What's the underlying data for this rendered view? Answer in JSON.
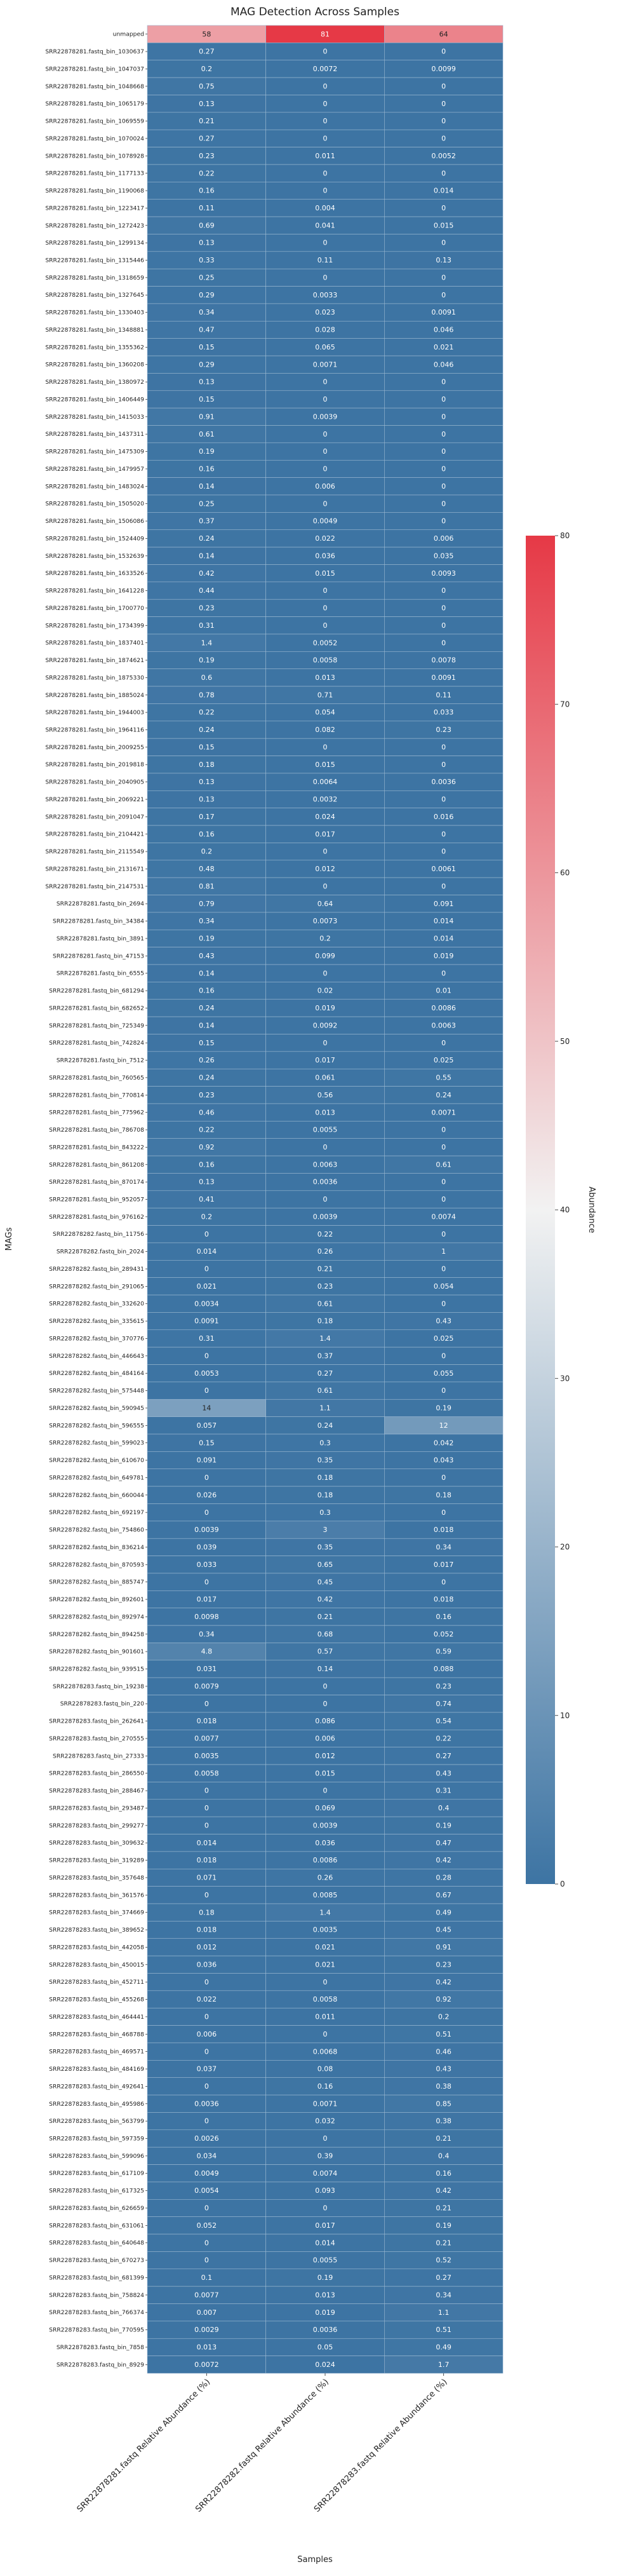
{
  "chart_data": {
    "type": "heatmap",
    "title": "MAG Detection Across Samples",
    "xlabel": "Samples",
    "ylabel": "MAGs",
    "columns": [
      "SRR22878281.fastq Relative Abundance (%)",
      "SRR22878282.fastq Relative Abundance (%)",
      "SRR22878283.fastq Relative Abundance (%)"
    ],
    "rows": [
      "unmapped",
      "SRR22878281.fastq_bin_1030637",
      "SRR22878281.fastq_bin_1047037",
      "SRR22878281.fastq_bin_1048668",
      "SRR22878281.fastq_bin_1065179",
      "SRR22878281.fastq_bin_1069559",
      "SRR22878281.fastq_bin_1070024",
      "SRR22878281.fastq_bin_1078928",
      "SRR22878281.fastq_bin_1177133",
      "SRR22878281.fastq_bin_1190068",
      "SRR22878281.fastq_bin_1223417",
      "SRR22878281.fastq_bin_1272423",
      "SRR22878281.fastq_bin_1299134",
      "SRR22878281.fastq_bin_1315446",
      "SRR22878281.fastq_bin_1318659",
      "SRR22878281.fastq_bin_1327645",
      "SRR22878281.fastq_bin_1330403",
      "SRR22878281.fastq_bin_1348881",
      "SRR22878281.fastq_bin_1355362",
      "SRR22878281.fastq_bin_1360208",
      "SRR22878281.fastq_bin_1380972",
      "SRR22878281.fastq_bin_1406449",
      "SRR22878281.fastq_bin_1415033",
      "SRR22878281.fastq_bin_1437311",
      "SRR22878281.fastq_bin_1475309",
      "SRR22878281.fastq_bin_1479957",
      "SRR22878281.fastq_bin_1483024",
      "SRR22878281.fastq_bin_1505020",
      "SRR22878281.fastq_bin_1506086",
      "SRR22878281.fastq_bin_1524409",
      "SRR22878281.fastq_bin_1532639",
      "SRR22878281.fastq_bin_1633526",
      "SRR22878281.fastq_bin_1641228",
      "SRR22878281.fastq_bin_1700770",
      "SRR22878281.fastq_bin_1734399",
      "SRR22878281.fastq_bin_1837401",
      "SRR22878281.fastq_bin_1874621",
      "SRR22878281.fastq_bin_1875330",
      "SRR22878281.fastq_bin_1885024",
      "SRR22878281.fastq_bin_1944003",
      "SRR22878281.fastq_bin_1964116",
      "SRR22878281.fastq_bin_2009255",
      "SRR22878281.fastq_bin_2019818",
      "SRR22878281.fastq_bin_2040905",
      "SRR22878281.fastq_bin_2069221",
      "SRR22878281.fastq_bin_2091047",
      "SRR22878281.fastq_bin_2104421",
      "SRR22878281.fastq_bin_2115549",
      "SRR22878281.fastq_bin_2131671",
      "SRR22878281.fastq_bin_2147531",
      "SRR22878281.fastq_bin_2694",
      "SRR22878281.fastq_bin_34384",
      "SRR22878281.fastq_bin_3891",
      "SRR22878281.fastq_bin_47153",
      "SRR22878281.fastq_bin_6555",
      "SRR22878281.fastq_bin_681294",
      "SRR22878281.fastq_bin_682652",
      "SRR22878281.fastq_bin_725349",
      "SRR22878281.fastq_bin_742824",
      "SRR22878281.fastq_bin_7512",
      "SRR22878281.fastq_bin_760565",
      "SRR22878281.fastq_bin_770814",
      "SRR22878281.fastq_bin_775962",
      "SRR22878281.fastq_bin_786708",
      "SRR22878281.fastq_bin_843222",
      "SRR22878281.fastq_bin_861208",
      "SRR22878281.fastq_bin_870174",
      "SRR22878281.fastq_bin_952057",
      "SRR22878281.fastq_bin_976162",
      "SRR22878282.fastq_bin_11756",
      "SRR22878282.fastq_bin_2024",
      "SRR22878282.fastq_bin_289431",
      "SRR22878282.fastq_bin_291065",
      "SRR22878282.fastq_bin_332620",
      "SRR22878282.fastq_bin_335615",
      "SRR22878282.fastq_bin_370776",
      "SRR22878282.fastq_bin_446643",
      "SRR22878282.fastq_bin_484164",
      "SRR22878282.fastq_bin_575448",
      "SRR22878282.fastq_bin_590945",
      "SRR22878282.fastq_bin_596555",
      "SRR22878282.fastq_bin_599023",
      "SRR22878282.fastq_bin_610670",
      "SRR22878282.fastq_bin_649781",
      "SRR22878282.fastq_bin_660044",
      "SRR22878282.fastq_bin_692197",
      "SRR22878282.fastq_bin_754860",
      "SRR22878282.fastq_bin_836214",
      "SRR22878282.fastq_bin_870593",
      "SRR22878282.fastq_bin_885747",
      "SRR22878282.fastq_bin_892601",
      "SRR22878282.fastq_bin_892974",
      "SRR22878282.fastq_bin_894258",
      "SRR22878282.fastq_bin_901601",
      "SRR22878282.fastq_bin_939515",
      "SRR22878283.fastq_bin_19238",
      "SRR22878283.fastq_bin_220",
      "SRR22878283.fastq_bin_262641",
      "SRR22878283.fastq_bin_270555",
      "SRR22878283.fastq_bin_27333",
      "SRR22878283.fastq_bin_286550",
      "SRR22878283.fastq_bin_288467",
      "SRR22878283.fastq_bin_293487",
      "SRR22878283.fastq_bin_299277",
      "SRR22878283.fastq_bin_309632",
      "SRR22878283.fastq_bin_319289",
      "SRR22878283.fastq_bin_357648",
      "SRR22878283.fastq_bin_361576",
      "SRR22878283.fastq_bin_374669",
      "SRR22878283.fastq_bin_389652",
      "SRR22878283.fastq_bin_442058",
      "SRR22878283.fastq_bin_450015",
      "SRR22878283.fastq_bin_452711",
      "SRR22878283.fastq_bin_455268",
      "SRR22878283.fastq_bin_464441",
      "SRR22878283.fastq_bin_468788",
      "SRR22878283.fastq_bin_469571",
      "SRR22878283.fastq_bin_484169",
      "SRR22878283.fastq_bin_492641",
      "SRR22878283.fastq_bin_495986",
      "SRR22878283.fastq_bin_563799",
      "SRR22878283.fastq_bin_597359",
      "SRR22878283.fastq_bin_599096",
      "SRR22878283.fastq_bin_617109",
      "SRR22878283.fastq_bin_617325",
      "SRR22878283.fastq_bin_626659",
      "SRR22878283.fastq_bin_631061",
      "SRR22878283.fastq_bin_640648",
      "SRR22878283.fastq_bin_670273",
      "SRR22878283.fastq_bin_681399",
      "SRR22878283.fastq_bin_758824",
      "SRR22878283.fastq_bin_766374",
      "SRR22878283.fastq_bin_770595",
      "SRR22878283.fastq_bin_7858",
      "SRR22878283.fastq_bin_8929"
    ],
    "labels": [
      [
        "58",
        "81",
        "64"
      ],
      [
        "0.27",
        "0",
        "0"
      ],
      [
        "0.2",
        "0.0072",
        "0.0099"
      ],
      [
        "0.75",
        "0",
        "0"
      ],
      [
        "0.13",
        "0",
        "0"
      ],
      [
        "0.21",
        "0",
        "0"
      ],
      [
        "0.27",
        "0",
        "0"
      ],
      [
        "0.23",
        "0.011",
        "0.0052"
      ],
      [
        "0.22",
        "0",
        "0"
      ],
      [
        "0.16",
        "0",
        "0.014"
      ],
      [
        "0.11",
        "0.004",
        "0"
      ],
      [
        "0.69",
        "0.041",
        "0.015"
      ],
      [
        "0.13",
        "0",
        "0"
      ],
      [
        "0.33",
        "0.11",
        "0.13"
      ],
      [
        "0.25",
        "0",
        "0"
      ],
      [
        "0.29",
        "0.0033",
        "0"
      ],
      [
        "0.34",
        "0.023",
        "0.0091"
      ],
      [
        "0.47",
        "0.028",
        "0.046"
      ],
      [
        "0.15",
        "0.065",
        "0.021"
      ],
      [
        "0.29",
        "0.0071",
        "0.046"
      ],
      [
        "0.13",
        "0",
        "0"
      ],
      [
        "0.15",
        "0",
        "0"
      ],
      [
        "0.91",
        "0.0039",
        "0"
      ],
      [
        "0.61",
        "0",
        "0"
      ],
      [
        "0.19",
        "0",
        "0"
      ],
      [
        "0.16",
        "0",
        "0"
      ],
      [
        "0.14",
        "0.006",
        "0"
      ],
      [
        "0.25",
        "0",
        "0"
      ],
      [
        "0.37",
        "0.0049",
        "0"
      ],
      [
        "0.24",
        "0.022",
        "0.006"
      ],
      [
        "0.14",
        "0.036",
        "0.035"
      ],
      [
        "0.42",
        "0.015",
        "0.0093"
      ],
      [
        "0.44",
        "0",
        "0"
      ],
      [
        "0.23",
        "0",
        "0"
      ],
      [
        "0.31",
        "0",
        "0"
      ],
      [
        "1.4",
        "0.0052",
        "0"
      ],
      [
        "0.19",
        "0.0058",
        "0.0078"
      ],
      [
        "0.6",
        "0.013",
        "0.0091"
      ],
      [
        "0.78",
        "0.71",
        "0.11"
      ],
      [
        "0.22",
        "0.054",
        "0.033"
      ],
      [
        "0.24",
        "0.082",
        "0.23"
      ],
      [
        "0.15",
        "0",
        "0"
      ],
      [
        "0.18",
        "0.015",
        "0"
      ],
      [
        "0.13",
        "0.0064",
        "0.0036"
      ],
      [
        "0.13",
        "0.0032",
        "0"
      ],
      [
        "0.17",
        "0.024",
        "0.016"
      ],
      [
        "0.16",
        "0.017",
        "0"
      ],
      [
        "0.2",
        "0",
        "0"
      ],
      [
        "0.48",
        "0.012",
        "0.0061"
      ],
      [
        "0.81",
        "0",
        "0"
      ],
      [
        "0.79",
        "0.64",
        "0.091"
      ],
      [
        "0.34",
        "0.0073",
        "0.014"
      ],
      [
        "0.19",
        "0.2",
        "0.014"
      ],
      [
        "0.43",
        "0.099",
        "0.019"
      ],
      [
        "0.14",
        "0",
        "0"
      ],
      [
        "0.16",
        "0.02",
        "0.01"
      ],
      [
        "0.24",
        "0.019",
        "0.0086"
      ],
      [
        "0.14",
        "0.0092",
        "0.0063"
      ],
      [
        "0.15",
        "0",
        "0"
      ],
      [
        "0.26",
        "0.017",
        "0.025"
      ],
      [
        "0.24",
        "0.061",
        "0.55"
      ],
      [
        "0.23",
        "0.56",
        "0.24"
      ],
      [
        "0.46",
        "0.013",
        "0.0071"
      ],
      [
        "0.22",
        "0.0055",
        "0"
      ],
      [
        "0.92",
        "0",
        "0"
      ],
      [
        "0.16",
        "0.0063",
        "0.61"
      ],
      [
        "0.13",
        "0.0036",
        "0"
      ],
      [
        "0.41",
        "0",
        "0"
      ],
      [
        "0.2",
        "0.0039",
        "0.0074"
      ],
      [
        "0",
        "0.22",
        "0"
      ],
      [
        "0.014",
        "0.26",
        "1"
      ],
      [
        "0",
        "0.21",
        "0"
      ],
      [
        "0.021",
        "0.23",
        "0.054"
      ],
      [
        "0.0034",
        "0.61",
        "0"
      ],
      [
        "0.0091",
        "0.18",
        "0.43"
      ],
      [
        "0.31",
        "1.4",
        "0.025"
      ],
      [
        "0",
        "0.37",
        "0"
      ],
      [
        "0.0053",
        "0.27",
        "0.055"
      ],
      [
        "0",
        "0.61",
        "0"
      ],
      [
        "14",
        "1.1",
        "0.19"
      ],
      [
        "0.057",
        "0.24",
        "12"
      ],
      [
        "0.15",
        "0.3",
        "0.042"
      ],
      [
        "0.091",
        "0.35",
        "0.043"
      ],
      [
        "0",
        "0.18",
        "0"
      ],
      [
        "0.026",
        "0.18",
        "0.18"
      ],
      [
        "0",
        "0.3",
        "0"
      ],
      [
        "0.0039",
        "3",
        "0.018"
      ],
      [
        "0.039",
        "0.35",
        "0.34"
      ],
      [
        "0.033",
        "0.65",
        "0.017"
      ],
      [
        "0",
        "0.45",
        "0"
      ],
      [
        "0.017",
        "0.42",
        "0.018"
      ],
      [
        "0.0098",
        "0.21",
        "0.16"
      ],
      [
        "0.34",
        "0.68",
        "0.052"
      ],
      [
        "4.8",
        "0.57",
        "0.59"
      ],
      [
        "0.031",
        "0.14",
        "0.088"
      ],
      [
        "0.0079",
        "0",
        "0.23"
      ],
      [
        "0",
        "0",
        "0.74"
      ],
      [
        "0.018",
        "0.086",
        "0.54"
      ],
      [
        "0.0077",
        "0.006",
        "0.22"
      ],
      [
        "0.0035",
        "0.012",
        "0.27"
      ],
      [
        "0.0058",
        "0.015",
        "0.43"
      ],
      [
        "0",
        "0",
        "0.31"
      ],
      [
        "0",
        "0.069",
        "0.4"
      ],
      [
        "0",
        "0.0039",
        "0.19"
      ],
      [
        "0.014",
        "0.036",
        "0.47"
      ],
      [
        "0.018",
        "0.0086",
        "0.42"
      ],
      [
        "0.071",
        "0.26",
        "0.28"
      ],
      [
        "0",
        "0.0085",
        "0.67"
      ],
      [
        "0.18",
        "1.4",
        "0.49"
      ],
      [
        "0.018",
        "0.0035",
        "0.45"
      ],
      [
        "0.012",
        "0.021",
        "0.91"
      ],
      [
        "0.036",
        "0.021",
        "0.23"
      ],
      [
        "0",
        "0",
        "0.42"
      ],
      [
        "0.022",
        "0.0058",
        "0.92"
      ],
      [
        "0",
        "0.011",
        "0.2"
      ],
      [
        "0.006",
        "0",
        "0.51"
      ],
      [
        "0",
        "0.0068",
        "0.46"
      ],
      [
        "0.037",
        "0.08",
        "0.43"
      ],
      [
        "0",
        "0.16",
        "0.38"
      ],
      [
        "0.0036",
        "0.0071",
        "0.85"
      ],
      [
        "0",
        "0.032",
        "0.38"
      ],
      [
        "0.0026",
        "0",
        "0.21"
      ],
      [
        "0.034",
        "0.39",
        "0.4"
      ],
      [
        "0.0049",
        "0.0074",
        "0.16"
      ],
      [
        "0.0054",
        "0.093",
        "0.42"
      ],
      [
        "0",
        "0",
        "0.21"
      ],
      [
        "0.052",
        "0.017",
        "0.19"
      ],
      [
        "0",
        "0.014",
        "0.21"
      ],
      [
        "0",
        "0.0055",
        "0.52"
      ],
      [
        "0.1",
        "0.19",
        "0.27"
      ],
      [
        "0.0077",
        "0.013",
        "0.34"
      ],
      [
        "0.007",
        "0.019",
        "1.1"
      ],
      [
        "0.0029",
        "0.0036",
        "0.51"
      ],
      [
        "0.013",
        "0.05",
        "0.49"
      ],
      [
        "0.0072",
        "0.024",
        "1.7"
      ]
    ],
    "colorbar": {
      "label": "Abundance",
      "min": 0,
      "max": 80,
      "ticks": [
        "0",
        "10",
        "20",
        "30",
        "40",
        "50",
        "60",
        "70",
        "80"
      ]
    },
    "colors": {
      "low": "#3d74a3",
      "mid": "#f2f2f2",
      "high": "#e63946"
    },
    "cell_border": "#9dbad2"
  }
}
